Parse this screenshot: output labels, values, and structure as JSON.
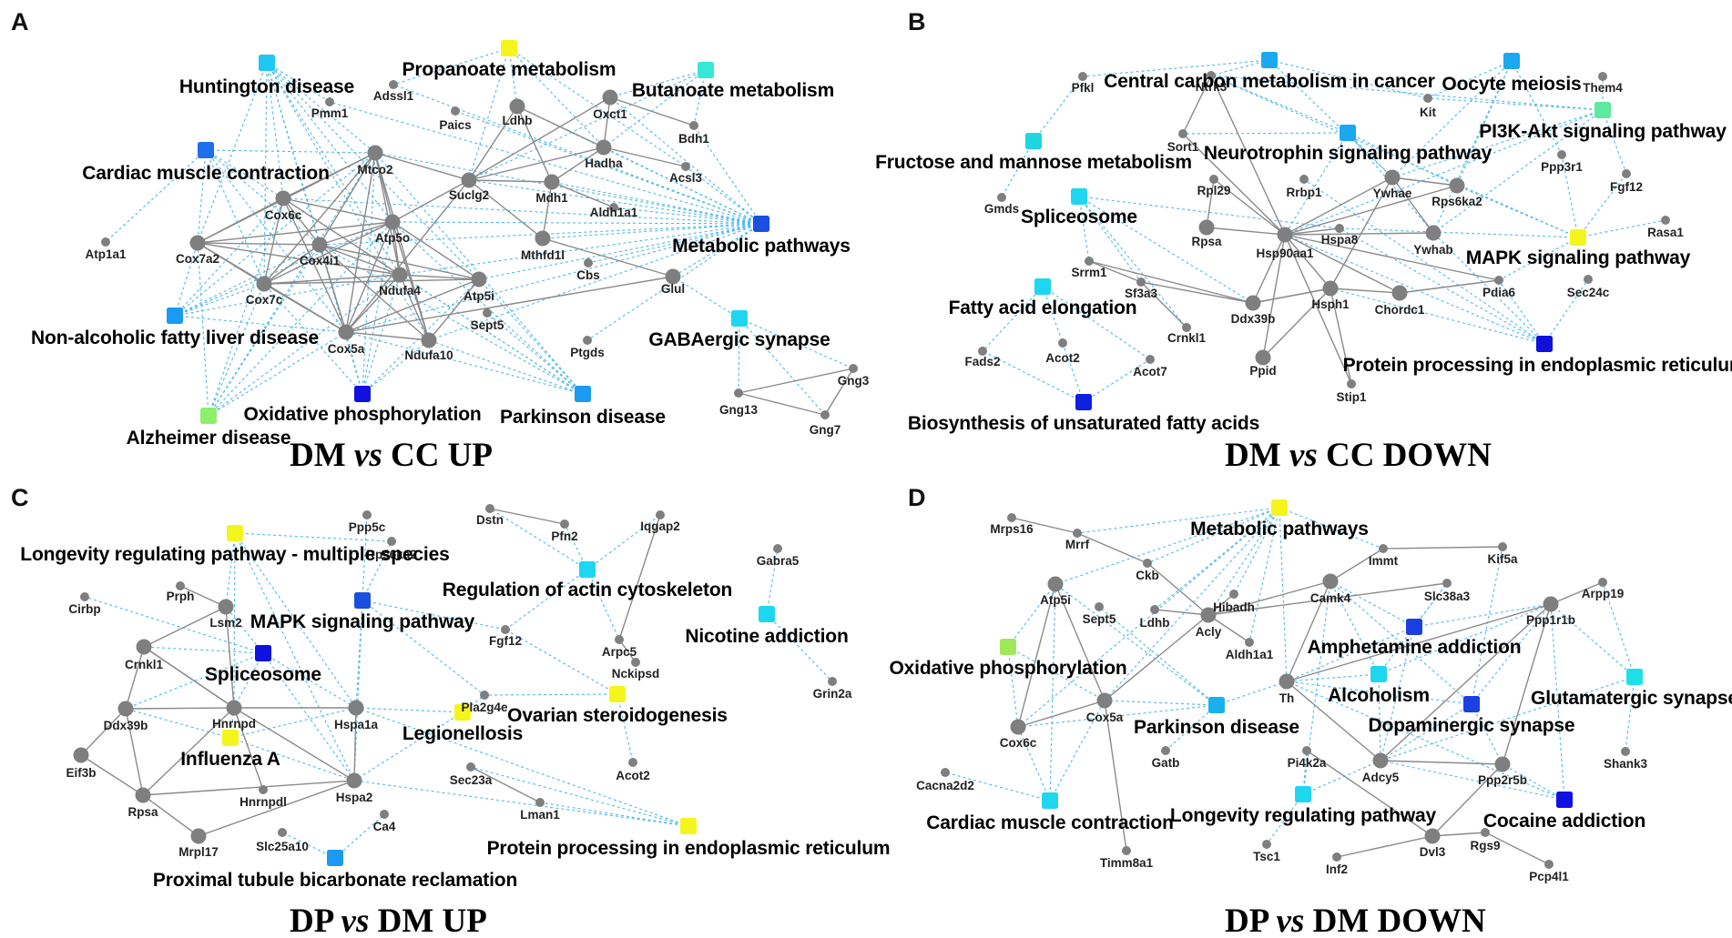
{
  "panels": [
    {
      "letter": "A",
      "title_parts": [
        "DM ",
        "vs",
        " CC   UP"
      ],
      "pathways": [
        {
          "id": "hunt",
          "label": "Huntington disease",
          "color": "#1ec8f4"
        },
        {
          "id": "prop",
          "label": "Propanoate metabolism",
          "color": "#f5f51e"
        },
        {
          "id": "buta",
          "label": "Butanoate metabolism",
          "color": "#36e8d8"
        },
        {
          "id": "card",
          "label": "Cardiac muscle contraction",
          "color": "#1f6fe8"
        },
        {
          "id": "meta",
          "label": "Metabolic pathways",
          "color": "#1a4fe0"
        },
        {
          "id": "nafl",
          "label": "Non-alcoholic fatty liver disease",
          "color": "#1a9af0"
        },
        {
          "id": "gaba",
          "label": "GABAergic synapse",
          "color": "#1ed6f0"
        },
        {
          "id": "oxph",
          "label": "Oxidative phosphorylation",
          "color": "#1010e0"
        },
        {
          "id": "park",
          "label": "Parkinson disease",
          "color": "#1a9af0"
        },
        {
          "id": "alzh",
          "label": "Alzheimer disease",
          "color": "#8ef06a"
        }
      ],
      "genes": [
        "Adssl1",
        "Pmm1",
        "Paics",
        "Ldhb",
        "Oxct1",
        "Bdh1",
        "Hadha",
        "Mtco2",
        "Acsl3",
        "Suclg2",
        "Mdh1",
        "Cox6c",
        "Aldh1a1",
        "Atp5o",
        "Cox4i1",
        "Mthfd1l",
        "Atp1a1",
        "Cox7a2",
        "Cbs",
        "Ndufa4",
        "Glul",
        "Cox7c",
        "Atp5i",
        "Sept5",
        "Cox5a",
        "Ndufa10",
        "Ptgds",
        "Gng3",
        "Gng13",
        "Gng7"
      ]
    },
    {
      "letter": "B",
      "title_parts": [
        "DM ",
        "vs",
        " CC   DOWN"
      ],
      "pathways": [
        {
          "id": "ccmc",
          "label": "Central carbon metabolism in cancer",
          "color": "#1aa8f0"
        },
        {
          "id": "oocy",
          "label": "Oocyte meiosis",
          "color": "#1aa8f0"
        },
        {
          "id": "fruc",
          "label": "Fructose and mannose metabolism",
          "color": "#1ed6e0"
        },
        {
          "id": "neur",
          "label": "Neurotrophin signaling pathway",
          "color": "#1aa8f0"
        },
        {
          "id": "pi3k",
          "label": "PI3K-Akt signaling pathway",
          "color": "#5ee8a0"
        },
        {
          "id": "spli",
          "label": "Spliceosome",
          "color": "#1ed6f0"
        },
        {
          "id": "mapk",
          "label": "MAPK signaling pathway",
          "color": "#f5f51e"
        },
        {
          "id": "fael",
          "label": "Fatty acid elongation",
          "color": "#1ed6f0"
        },
        {
          "id": "prot",
          "label": "Protein processing in endoplasmic reticulum",
          "color": "#1010d8"
        },
        {
          "id": "bios",
          "label": "Biosynthesis of unsaturated fatty acids",
          "color": "#1020e0"
        }
      ],
      "genes": [
        "Pfkl",
        "Ntrk3",
        "Kit",
        "Them4",
        "Sort1",
        "Ppp3r1",
        "Gmds",
        "Rpl29",
        "Rrbp1",
        "Ywhae",
        "Fgf12",
        "Rps6ka2",
        "Rpsa",
        "Hsp90aa1",
        "Hspa8",
        "Ywhab",
        "Rasa1",
        "Srrm1",
        "Sf3a3",
        "Ddx39b",
        "Hsph1",
        "Chordc1",
        "Pdia6",
        "Sec24c",
        "Crnkl1",
        "Fads2",
        "Acot2",
        "Acot7",
        "Ppid",
        "Stip1"
      ]
    },
    {
      "letter": "C",
      "title_parts": [
        "DP   ",
        "vs",
        " DM   UP"
      ],
      "pathways": [
        {
          "id": "long",
          "label": "Longevity regulating pathway - multiple species",
          "color": "#f5f51e"
        },
        {
          "id": "mapk",
          "label": "MAPK signaling pathway",
          "color": "#1a50e0"
        },
        {
          "id": "ract",
          "label": "Regulation of actin cytoskeleton",
          "color": "#1ed6f0"
        },
        {
          "id": "nico",
          "label": "Nicotine addiction",
          "color": "#1ed6f0"
        },
        {
          "id": "spli",
          "label": "Spliceosome",
          "color": "#1010e0"
        },
        {
          "id": "ovar",
          "label": "Ovarian steroidogenesis",
          "color": "#f5f51e"
        },
        {
          "id": "legi",
          "label": "Legionellosis",
          "color": "#f5f51e"
        },
        {
          "id": "infl",
          "label": "Influenza A",
          "color": "#f5f51e"
        },
        {
          "id": "prot",
          "label": "Protein processing in endoplasmic reticulum",
          "color": "#f5f51e"
        },
        {
          "id": "prox",
          "label": "Proximal tubule bicarbonate reclamation",
          "color": "#1a9af0"
        }
      ],
      "genes": [
        "Dstn",
        "Iqgap2",
        "Ppp5c",
        "Pfn2",
        "Rps6ka2",
        "Gabra5",
        "Cirbp",
        "Prph",
        "Lsm2",
        "Crnkl1",
        "Fgf12",
        "Arpc5",
        "Nckipsd",
        "Grin2a",
        "Pla2g4e",
        "Ddx39b",
        "Hnrnpd",
        "Hspa1a",
        "Eif3b",
        "Acot2",
        "Sec23a",
        "Hnrnpdl",
        "Rpsa",
        "Hspa2",
        "Lman1",
        "Ca4",
        "Mrpl17",
        "Slc25a10"
      ]
    },
    {
      "letter": "D",
      "title_parts": [
        "DP   ",
        "vs",
        " DM   DOWN"
      ],
      "pathways": [
        {
          "id": "meta",
          "label": "Metabolic pathways",
          "color": "#f5f51e"
        },
        {
          "id": "oxph",
          "label": "Oxidative phosphorylation",
          "color": "#a0e85a"
        },
        {
          "id": "amph",
          "label": "Amphetamine addiction",
          "color": "#1a40e0"
        },
        {
          "id": "alco",
          "label": "Alcoholism",
          "color": "#1ed6f0"
        },
        {
          "id": "glut",
          "label": "Glutamatergic synapse",
          "color": "#1ee0e8"
        },
        {
          "id": "park",
          "label": "Parkinson disease",
          "color": "#1ab0f0"
        },
        {
          "id": "dopa",
          "label": "Dopaminergic synapse",
          "color": "#1a40e0"
        },
        {
          "id": "card",
          "label": "Cardiac muscle contraction",
          "color": "#1ed6f0"
        },
        {
          "id": "long",
          "label": "Longevity regulating pathway",
          "color": "#1ed6f0"
        },
        {
          "id": "coca",
          "label": "Cocaine addiction",
          "color": "#1010e0"
        }
      ],
      "genes": [
        "Mrps16",
        "Mrrf",
        "Immt",
        "Kif5a",
        "Ckb",
        "Arpp19",
        "Atp5i",
        "Hibadh",
        "Camk4",
        "Slc38a3",
        "Sept5",
        "Ldhb",
        "Ppp1r1b",
        "Acly",
        "Aldh1a1",
        "Th",
        "Cox5a",
        "Cox6c",
        "Gatb",
        "Pi4k2a",
        "Adcy5",
        "Shank3",
        "Ppp2r5b",
        "Cacna2d2",
        "Dvl3",
        "Rgs9",
        "Tsc1",
        "Inf2",
        "Timm8a1",
        "Pcp4l1"
      ]
    }
  ]
}
